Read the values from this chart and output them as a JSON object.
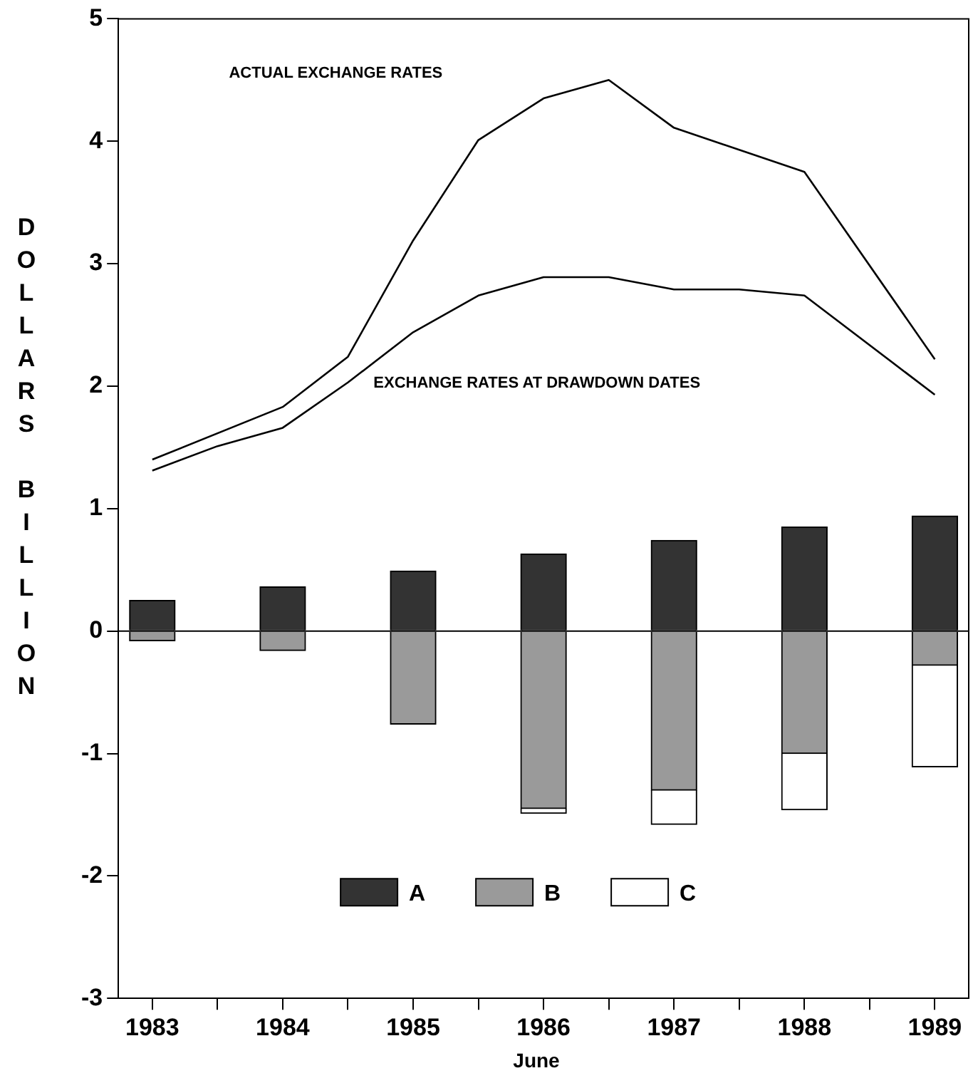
{
  "chart_data": {
    "type": "bar",
    "xlabel": "June",
    "ylabel": "DOLLARS BILLION",
    "stacked": true,
    "legend": "bottom",
    "marker": "none",
    "line_style": "solid",
    "x": [
      1983,
      1984,
      1985,
      1986,
      1987,
      1988,
      1989
    ],
    "xlim": [
      1982.74,
      1989.26
    ],
    "xticks": [
      1983,
      {
        "value": 1983.5,
        "label": null
      },
      1984,
      {
        "value": 1984.5,
        "label": null
      },
      1985,
      {
        "value": 1985.5,
        "label": null
      },
      1986,
      {
        "value": 1986.5,
        "label": null
      },
      1987,
      {
        "value": 1987.5,
        "label": null
      },
      1988,
      {
        "value": 1988.5,
        "label": null
      },
      1989
    ],
    "ylim": [
      -3,
      5
    ],
    "yticks": [
      -3,
      -2,
      -1,
      0,
      1,
      2,
      3,
      4,
      5
    ],
    "series": [
      {
        "name": "A",
        "color": "#333333",
        "values": [
          0.25,
          0.36,
          0.49,
          0.63,
          0.74,
          0.85,
          0.94
        ]
      },
      {
        "name": "B",
        "color": "#9a9a9a",
        "values": [
          -0.08,
          -0.16,
          -0.76,
          -1.45,
          -1.3,
          -1.0,
          -0.28
        ]
      },
      {
        "name": "C",
        "color": "#ffffff",
        "values": [
          null,
          null,
          null,
          -0.04,
          -0.28,
          -0.46,
          -0.83
        ]
      },
      {
        "type": "line",
        "color": "#000000",
        "x": [
          1983,
          1984,
          1984.5,
          1985,
          1985.5,
          1986,
          1986.5,
          1987,
          1988,
          1989
        ],
        "values": [
          1.4,
          1.83,
          2.24,
          3.19,
          4.01,
          4.35,
          4.5,
          4.11,
          3.75,
          2.22
        ]
      },
      {
        "type": "line",
        "color": "#000000",
        "x": [
          1983,
          1983.5,
          1984,
          1984.5,
          1985,
          1985.5,
          1986,
          1986.5,
          1987,
          1987.5,
          1988,
          1989
        ],
        "values": [
          1.31,
          1.51,
          1.66,
          2.03,
          2.44,
          2.74,
          2.89,
          2.89,
          2.79,
          2.79,
          2.74,
          1.93
        ]
      }
    ],
    "ref_lines": [
      {
        "axis": "y",
        "value": 0,
        "color": "#000000"
      }
    ],
    "annotations": [
      "ACTUAL EXCHANGE RATES",
      "EXCHANGE RATES AT DRAWDOWN DATES"
    ]
  }
}
